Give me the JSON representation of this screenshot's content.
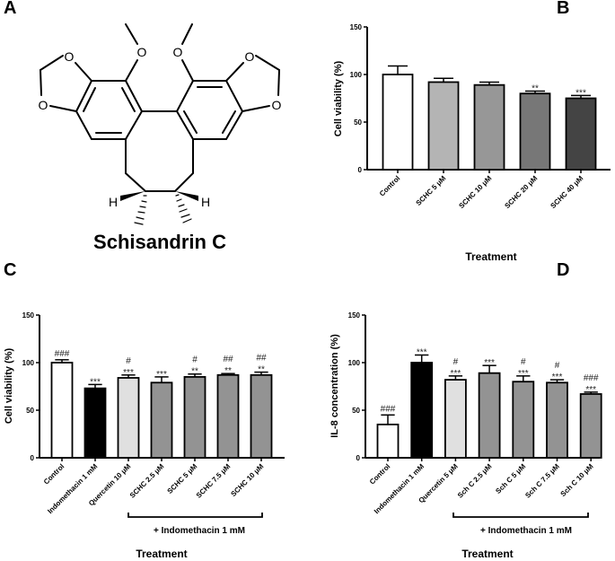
{
  "panel_labels": {
    "a": "A",
    "b": "B",
    "c": "C",
    "d": "D"
  },
  "structure": {
    "name": "Schisandrin C",
    "atoms": {
      "o": "O",
      "h": "H"
    }
  },
  "chart_data": [
    {
      "id": "B",
      "type": "bar",
      "title": "",
      "xlabel": "Treatment",
      "ylabel": "Cell viability (%)",
      "ylim": [
        0,
        150
      ],
      "yticks": [
        0,
        50,
        100,
        150
      ],
      "categories": [
        "Control",
        "SCHC 5 μM",
        "SCHC 10 μM",
        "SCHC 20 μM",
        "SCHC 40 μM"
      ],
      "values": [
        100,
        92,
        89,
        80,
        75
      ],
      "errors": [
        9,
        4,
        3,
        2.5,
        3
      ],
      "colors": [
        "#ffffff",
        "#b4b4b4",
        "#979797",
        "#777777",
        "#444444"
      ],
      "stars": [
        "",
        "",
        "",
        "**",
        "***"
      ],
      "hashes": [
        "",
        "",
        "",
        "",
        ""
      ],
      "bracket_label": ""
    },
    {
      "id": "C",
      "type": "bar",
      "title": "",
      "xlabel": "Treatment",
      "ylabel": "Cell viability (%)",
      "ylim": [
        0,
        150
      ],
      "yticks": [
        0,
        50,
        100,
        150
      ],
      "categories": [
        "Control",
        "Indomethacin 1 mM",
        "Quercetin 10 μM",
        "SCHC 2.5 μM",
        "SCHC 5 μM",
        "SCHC 7.5 μM",
        "SCHC 10 μM"
      ],
      "values": [
        100,
        73,
        84,
        79,
        85,
        87,
        87
      ],
      "errors": [
        3,
        4,
        3,
        6,
        3,
        1.5,
        3
      ],
      "colors": [
        "#ffffff",
        "#000000",
        "#e0e0e0",
        "#939393",
        "#939393",
        "#939393",
        "#939393"
      ],
      "stars": [
        "",
        "***",
        "***",
        "***",
        "**",
        "**",
        "**"
      ],
      "hashes": [
        "###",
        "",
        "#",
        "",
        "#",
        "##",
        "##"
      ],
      "bracket_label": "+ Indomethacin 1 mM"
    },
    {
      "id": "D",
      "type": "bar",
      "title": "",
      "xlabel": "Treatment",
      "ylabel": "IL-8 concentration (%)",
      "ylim": [
        0,
        150
      ],
      "yticks": [
        0,
        50,
        100,
        150
      ],
      "categories": [
        "Control",
        "Indomethacin 1 mM",
        "Quercetin 5 μM",
        "Sch C 2.5 μM",
        "Sch C 5 μM",
        "Sch C 7.5 μM",
        "Sch C 10 μM"
      ],
      "values": [
        35,
        100,
        82,
        89,
        80,
        79,
        67
      ],
      "errors": [
        10,
        8,
        4,
        8,
        6,
        3,
        2
      ],
      "colors": [
        "#ffffff",
        "#000000",
        "#e0e0e0",
        "#939393",
        "#939393",
        "#939393",
        "#939393"
      ],
      "stars": [
        "",
        "***",
        "***",
        "***",
        "***",
        "***",
        "***"
      ],
      "hashes": [
        "###",
        "",
        "#",
        "",
        "#",
        "#",
        "###"
      ],
      "bracket_label": "+ Indomethacin 1 mM"
    }
  ]
}
